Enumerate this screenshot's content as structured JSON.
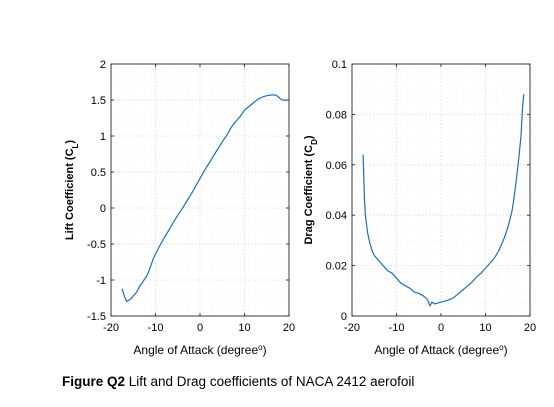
{
  "chart_data": [
    {
      "type": "line",
      "xlabel": "Angle of Attack (degree",
      "xlabel_sup": "o",
      "xlabel_end": ")",
      "ylabel": "Lift Coefficient (C",
      "ylabel_sub": "L",
      "ylabel_end": ")",
      "xlim": [
        -20,
        20
      ],
      "ylim": [
        -1.5,
        2
      ],
      "xticks": [
        -20,
        -10,
        0,
        10,
        20
      ],
      "xtick_labels": [
        "-20",
        "-10",
        "0",
        "10",
        "20"
      ],
      "yticks": [
        -1.5,
        -1,
        -0.5,
        0,
        0.5,
        1,
        1.5,
        2
      ],
      "ytick_labels": [
        "-1.5",
        "-1",
        "-0.5",
        "0",
        "0.5",
        "1",
        "1.5",
        "2"
      ],
      "grid": true,
      "line_color": "#1f6fb4",
      "series": [
        {
          "x": [
            -17.5,
            -17,
            -16.5,
            -16,
            -15.5,
            -15,
            -14.5,
            -14,
            -13.5,
            -13,
            -12.5,
            -12,
            -11.5,
            -11,
            -10.5,
            -10,
            -9,
            -8,
            -7,
            -6,
            -5,
            -4,
            -3,
            -2,
            -1,
            0,
            1,
            2,
            3,
            4,
            5,
            6,
            7,
            8,
            9,
            10,
            11,
            12,
            13,
            14,
            15,
            16,
            17,
            17.5,
            18,
            18.5,
            19,
            19.5
          ],
          "y": [
            -1.12,
            -1.22,
            -1.3,
            -1.28,
            -1.26,
            -1.22,
            -1.19,
            -1.14,
            -1.08,
            -1.04,
            -0.99,
            -0.95,
            -0.88,
            -0.79,
            -0.7,
            -0.64,
            -0.52,
            -0.41,
            -0.31,
            -0.2,
            -0.1,
            -0.01,
            0.09,
            0.19,
            0.3,
            0.41,
            0.52,
            0.62,
            0.72,
            0.82,
            0.92,
            1.01,
            1.12,
            1.2,
            1.27,
            1.36,
            1.41,
            1.46,
            1.51,
            1.54,
            1.56,
            1.57,
            1.57,
            1.55,
            1.52,
            1.5,
            1.5,
            1.49
          ]
        }
      ]
    },
    {
      "type": "line",
      "xlabel": "Angle of Attack (degree",
      "xlabel_sup": "o",
      "xlabel_end": ")",
      "ylabel": "Drag Coefficient (C",
      "ylabel_sub": "D",
      "ylabel_end": ")",
      "xlim": [
        -20,
        20
      ],
      "ylim": [
        0,
        0.1
      ],
      "xticks": [
        -20,
        -10,
        0,
        10,
        20
      ],
      "xtick_labels": [
        "-20",
        "-10",
        "0",
        "10",
        "20"
      ],
      "yticks": [
        0,
        0.02,
        0.04,
        0.06,
        0.08,
        0.1
      ],
      "ytick_labels": [
        "0",
        "0.02",
        "0.04",
        "0.06",
        "0.08",
        "0.1"
      ],
      "grid": true,
      "line_color": "#1f6fb4",
      "series": [
        {
          "x": [
            -17.5,
            -17.2,
            -17,
            -16.5,
            -16,
            -15.5,
            -15,
            -14,
            -13,
            -12,
            -11,
            -10,
            -9,
            -8,
            -7,
            -6,
            -5,
            -4,
            -3,
            -2.5,
            -2,
            -1.5,
            -1,
            0,
            1,
            2,
            3,
            4,
            5,
            6,
            7,
            8,
            9,
            10,
            11,
            12,
            13,
            14,
            15,
            16,
            16.5,
            17,
            17.5,
            18,
            18.3,
            18.6
          ],
          "y": [
            0.064,
            0.046,
            0.04,
            0.033,
            0.029,
            0.026,
            0.024,
            0.022,
            0.02,
            0.018,
            0.017,
            0.015,
            0.013,
            0.012,
            0.011,
            0.0095,
            0.009,
            0.008,
            0.0065,
            0.004,
            0.0055,
            0.0048,
            0.005,
            0.0055,
            0.006,
            0.0065,
            0.0075,
            0.009,
            0.0105,
            0.012,
            0.0135,
            0.0155,
            0.017,
            0.019,
            0.021,
            0.023,
            0.026,
            0.03,
            0.035,
            0.042,
            0.048,
            0.055,
            0.063,
            0.072,
            0.082,
            0.088
          ]
        }
      ]
    }
  ],
  "caption": {
    "figure_label": "Figure Q2",
    "text": " Lift and Drag coefficients of NACA 2412 aerofoil"
  }
}
